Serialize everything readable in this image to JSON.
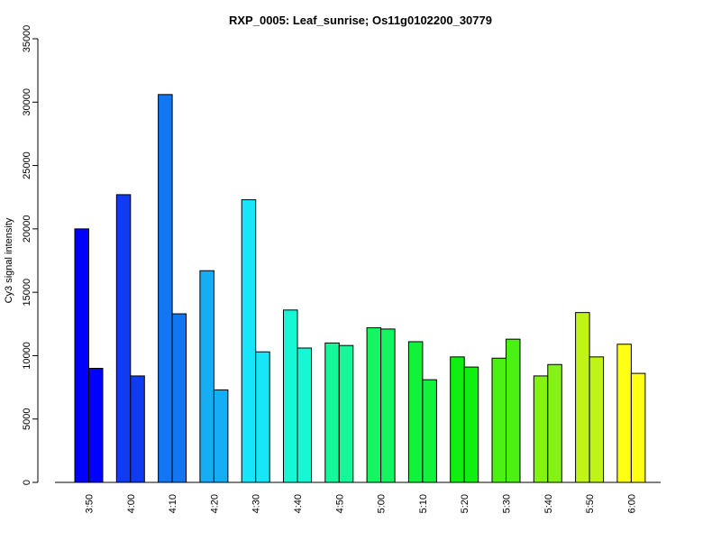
{
  "chart_data": {
    "type": "bar",
    "title": "RXP_0005: Leaf_sunrise; Os11g0102200_30779",
    "xlabel": "",
    "ylabel": "Cy3 signal intensity",
    "ylim": [
      0,
      35000
    ],
    "yticks": [
      0,
      5000,
      10000,
      15000,
      20000,
      25000,
      30000,
      35000
    ],
    "categories": [
      "3:50",
      "4:00",
      "4:10",
      "4:20",
      "4:30",
      "4:40",
      "4:50",
      "5:00",
      "5:10",
      "5:20",
      "5:30",
      "5:40",
      "5:50",
      "6:00"
    ],
    "colors": [
      "#0000FF",
      "#0F3CF2",
      "#1276F3",
      "#15AEF5",
      "#17E6F8",
      "#16F8D4",
      "#14F89A",
      "#14F560",
      "#12F23A",
      "#10F010",
      "#4BF112",
      "#84F313",
      "#C0F416",
      "#FFFF14"
    ],
    "bar_groups": [
      [
        20000,
        9000
      ],
      [
        22700,
        8400
      ],
      [
        30600,
        13300
      ],
      [
        16700,
        7300
      ],
      [
        22300,
        10300
      ],
      [
        13600,
        10600
      ],
      [
        11000,
        10800
      ],
      [
        12200,
        12100
      ],
      [
        11100,
        8100
      ],
      [
        9900,
        9100
      ],
      [
        9800,
        11300
      ],
      [
        8400,
        9300
      ],
      [
        13400,
        9900
      ],
      [
        10900,
        8600
      ]
    ],
    "grid": false,
    "legend": "none"
  }
}
